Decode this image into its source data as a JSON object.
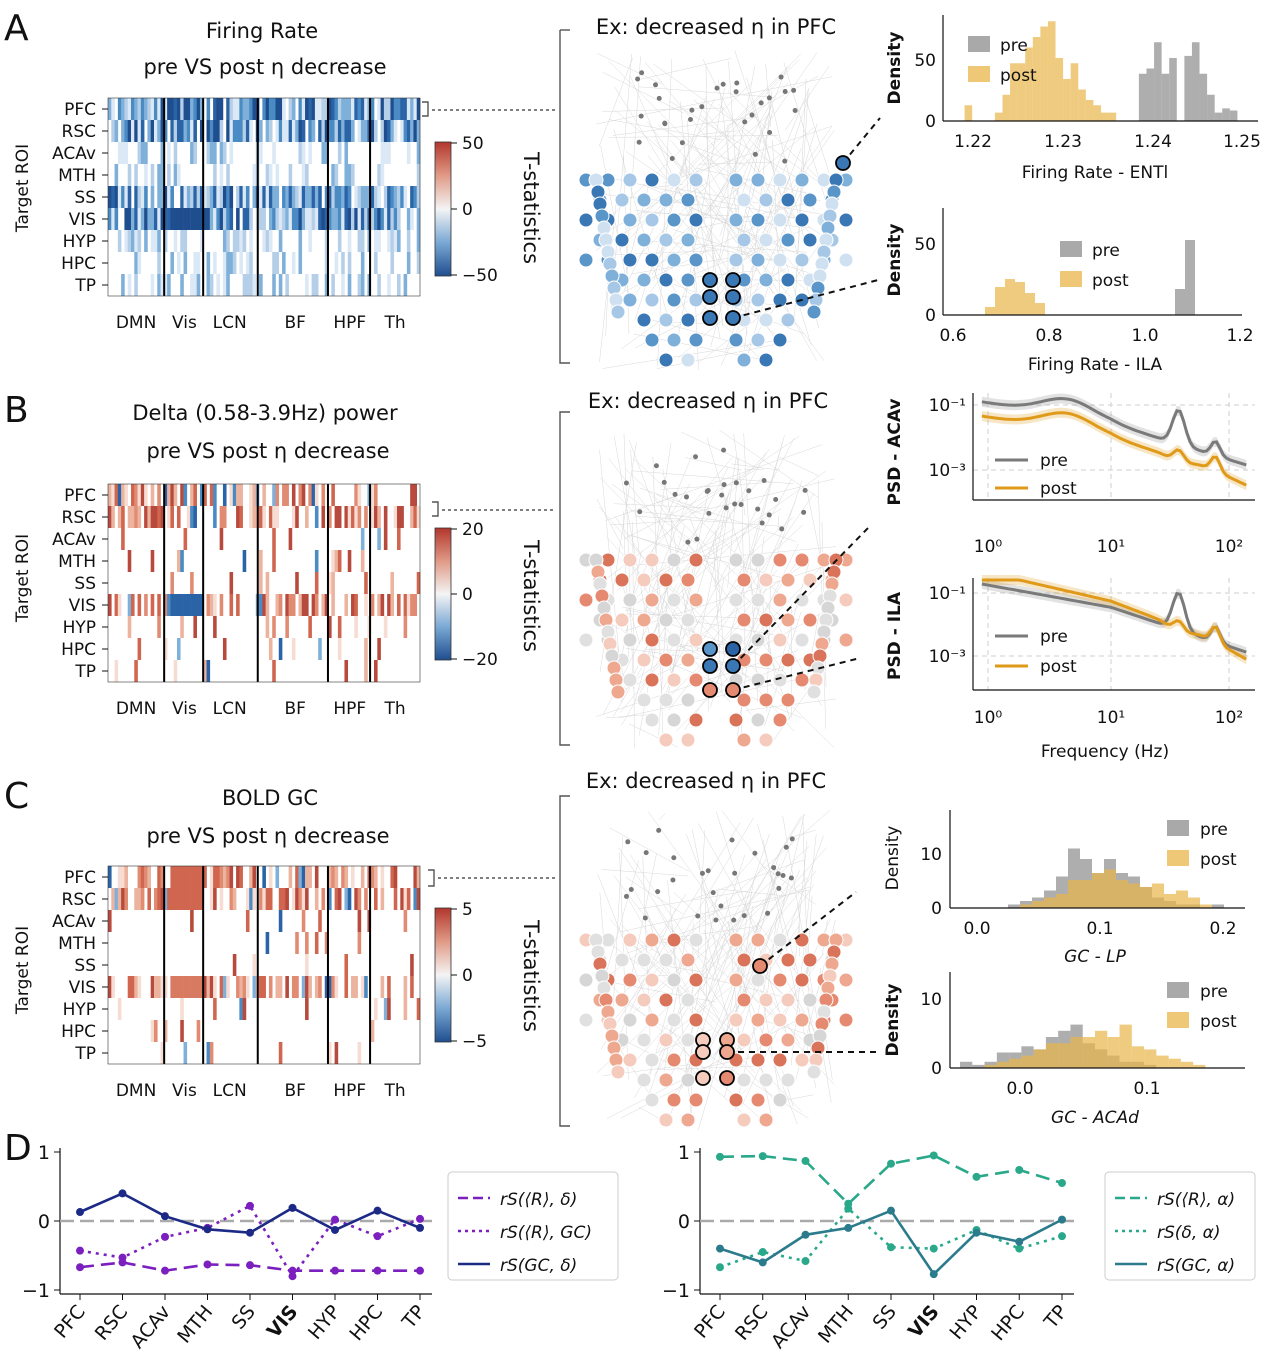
{
  "panels": {
    "A": {
      "letter": "A",
      "heatmap": {
        "title1": "Firing Rate",
        "title2": "pre VS post η decrease",
        "ylabel": "Target ROI",
        "rows": [
          "PFC",
          "RSC",
          "ACAv",
          "MTH",
          "SS",
          "VIS",
          "HYP",
          "HPC",
          "TP"
        ],
        "groups": [
          "DMN",
          "Vis",
          "LCN",
          "BF",
          "HPF",
          "Th"
        ],
        "colorbar": {
          "label": "T-statistics",
          "ticks": [
            "50",
            "0",
            "−50"
          ]
        }
      },
      "brain_title": "Ex: decreased η in PFC",
      "hist_top": {
        "ylabel": "Density",
        "xlabel": "Firing Rate - ENTl",
        "xticks": [
          "1.22",
          "1.23",
          "1.24",
          "1.25"
        ],
        "yticks": [
          "50",
          "0"
        ],
        "legend": [
          "pre",
          "post"
        ]
      },
      "hist_bottom": {
        "ylabel": "Density",
        "xlabel": "Firing Rate - ILA",
        "xticks": [
          "0.6",
          "0.8",
          "1.0",
          "1.2"
        ],
        "yticks": [
          "50",
          "0"
        ],
        "legend": [
          "pre",
          "post"
        ]
      }
    },
    "B": {
      "letter": "B",
      "heatmap": {
        "title1": "Delta (0.58-3.9Hz) power",
        "title2": "pre VS post η decrease",
        "ylabel": "Target ROI",
        "rows": [
          "PFC",
          "RSC",
          "ACAv",
          "MTH",
          "SS",
          "VIS",
          "HYP",
          "HPC",
          "TP"
        ],
        "groups": [
          "DMN",
          "Vis",
          "LCN",
          "BF",
          "HPF",
          "Th"
        ],
        "colorbar": {
          "label": "T-statistics",
          "ticks": [
            "20",
            "0",
            "−20"
          ]
        }
      },
      "brain_title": "Ex: decreased η in PFC",
      "psd_top": {
        "ylabel": "PSD - ACAv",
        "yticks": [
          "10⁻¹",
          "10⁻³"
        ],
        "legend": [
          "pre",
          "post"
        ]
      },
      "psd_bottom": {
        "ylabel": "PSD - ILA",
        "yticks": [
          "10⁻¹",
          "10⁻³"
        ],
        "legend": [
          "pre",
          "post"
        ]
      },
      "psd_xticks": [
        "10⁰",
        "10¹",
        "10²"
      ],
      "psd_xlabel": "Frequency (Hz)"
    },
    "C": {
      "letter": "C",
      "heatmap": {
        "title1": "BOLD GC",
        "title2": "pre VS post η decrease",
        "ylabel": "Target ROI",
        "rows": [
          "PFC",
          "RSC",
          "ACAv",
          "MTH",
          "SS",
          "VIS",
          "HYP",
          "HPC",
          "TP"
        ],
        "groups": [
          "DMN",
          "Vis",
          "LCN",
          "BF",
          "HPF",
          "Th"
        ],
        "colorbar": {
          "label": "T-statistics",
          "ticks": [
            "5",
            "0",
            "−5"
          ]
        }
      },
      "brain_title": "Ex: decreased η in PFC",
      "hist_top": {
        "ylabel": "Density",
        "xlabel": "GC - LP",
        "xticks": [
          "0.0",
          "0.1",
          "0.2"
        ],
        "yticks": [
          "10",
          "0"
        ],
        "legend": [
          "pre",
          "post"
        ]
      },
      "hist_bottom": {
        "ylabel": "Density",
        "xlabel": "GC - ACAd",
        "xticks": [
          "0.0",
          "0.1"
        ],
        "yticks": [
          "10",
          "0"
        ],
        "legend": [
          "pre",
          "post"
        ]
      }
    },
    "D": {
      "letter": "D"
    }
  },
  "colors": {
    "pre": "#8c8c8c",
    "post": "#e8b54a",
    "psd_post": "#e09a1a",
    "navy": "#1c2a86",
    "purple": "#7b1fbf",
    "teal": "#2aa88a",
    "steel": "#2b7b8c"
  },
  "chart_data": [
    {
      "type": "line",
      "title": "",
      "categories": [
        "PFC",
        "RSC",
        "ACAv",
        "MTH",
        "SS",
        "VIS",
        "HYP",
        "HPC",
        "TP"
      ],
      "ylim": [
        -1,
        1
      ],
      "yticks": [
        "1",
        "0",
        "−1"
      ],
      "series": [
        {
          "name": "rS(⟨R⟩, δ)",
          "style": "dashed",
          "color": "#7b1fbf",
          "values": [
            -0.67,
            -0.6,
            -0.72,
            -0.63,
            -0.64,
            -0.72,
            -0.72,
            -0.72,
            -0.72
          ]
        },
        {
          "name": "rS(⟨R⟩, GC)",
          "style": "dotted",
          "color": "#7b1fbf",
          "values": [
            -0.43,
            -0.53,
            -0.23,
            -0.1,
            0.22,
            -0.8,
            0.02,
            -0.22,
            0.03
          ]
        },
        {
          "name": "rS(GC, δ)",
          "style": "solid",
          "color": "#1c2a86",
          "values": [
            0.13,
            0.4,
            0.07,
            -0.12,
            -0.17,
            0.19,
            -0.13,
            0.15,
            -0.1
          ]
        }
      ]
    },
    {
      "type": "line",
      "title": "",
      "categories": [
        "PFC",
        "RSC",
        "ACAv",
        "MTH",
        "SS",
        "VIS",
        "HYP",
        "HPC",
        "TP"
      ],
      "ylim": [
        -1,
        1
      ],
      "yticks": [
        "1",
        "0",
        "−1"
      ],
      "series": [
        {
          "name": "rS(⟨R⟩, α)",
          "style": "dashed",
          "color": "#2aa88a",
          "values": [
            0.93,
            0.94,
            0.87,
            0.25,
            0.83,
            0.95,
            0.64,
            0.74,
            0.55
          ]
        },
        {
          "name": "rS(δ, α)",
          "style": "dotted",
          "color": "#2aa88a",
          "values": [
            -0.67,
            -0.45,
            -0.58,
            0.18,
            -0.38,
            -0.4,
            -0.13,
            -0.4,
            -0.22
          ]
        },
        {
          "name": "rS(GC, α)",
          "style": "solid",
          "color": "#2b7b8c",
          "values": [
            -0.4,
            -0.6,
            -0.2,
            -0.1,
            0.15,
            -0.77,
            -0.17,
            -0.3,
            0.02
          ]
        }
      ]
    }
  ]
}
